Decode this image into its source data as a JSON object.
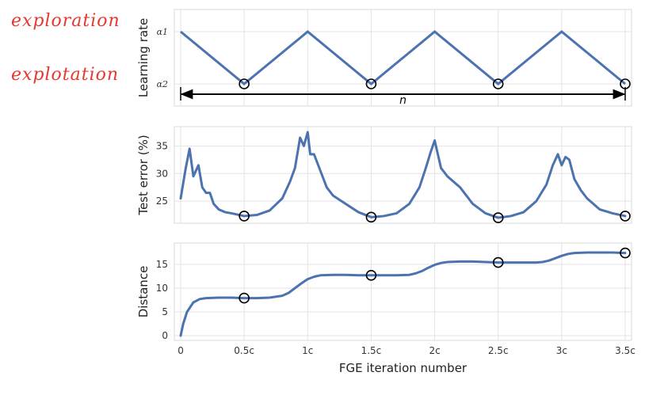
{
  "annotations": {
    "exploration": "exploration",
    "explotation": "explotation"
  },
  "chart_data": [
    {
      "type": "line",
      "ylabel": "Learning rate",
      "y_ticks": [
        "α1",
        "α2"
      ],
      "x": [
        0,
        0.5,
        1,
        1.5,
        2,
        2.5,
        3,
        3.5
      ],
      "values": [
        "α1",
        "α2",
        "α1",
        "α2",
        "α1",
        "α2",
        "α1",
        "α2"
      ],
      "marked_points_x": [
        0.5,
        1.5,
        2.5,
        3.5
      ],
      "span_arrow": {
        "from": 0,
        "to": 3.5,
        "label": "n"
      },
      "color": "#4c72b0"
    },
    {
      "type": "line",
      "ylabel": "Test error (%)",
      "ylim": [
        21,
        38.5
      ],
      "y_ticks": [
        25,
        30,
        35
      ],
      "x": [
        0,
        0.04,
        0.07,
        0.1,
        0.14,
        0.17,
        0.2,
        0.23,
        0.26,
        0.3,
        0.35,
        0.4,
        0.5,
        0.6,
        0.7,
        0.8,
        0.86,
        0.9,
        0.94,
        0.97,
        1.0,
        1.02,
        1.05,
        1.1,
        1.15,
        1.2,
        1.3,
        1.4,
        1.5,
        1.6,
        1.7,
        1.8,
        1.88,
        1.93,
        1.97,
        2.0,
        2.05,
        2.1,
        2.2,
        2.3,
        2.4,
        2.5,
        2.6,
        2.7,
        2.8,
        2.88,
        2.93,
        2.97,
        3.0,
        3.03,
        3.06,
        3.1,
        3.15,
        3.2,
        3.3,
        3.4,
        3.5
      ],
      "values": [
        25.5,
        31,
        34.5,
        29.5,
        31.5,
        27.5,
        26.5,
        26.5,
        24.5,
        23.5,
        23,
        22.8,
        22.3,
        22.5,
        23.3,
        25.5,
        28.5,
        31,
        36.5,
        35,
        37.5,
        33.5,
        33.5,
        30.5,
        27.5,
        26,
        24.5,
        23,
        22.1,
        22.3,
        22.8,
        24.5,
        27.5,
        31,
        34,
        36,
        31,
        29.5,
        27.5,
        24.5,
        22.8,
        22,
        22.3,
        23,
        25,
        28,
        31.5,
        33.5,
        31.5,
        33,
        32.5,
        29,
        27,
        25.5,
        23.5,
        22.8,
        22.3
      ],
      "marked_points_x": [
        0.5,
        1.5,
        2.5,
        3.5
      ],
      "color": "#4c72b0"
    },
    {
      "type": "line",
      "ylabel": "Distance",
      "xlabel": "FGE iteration number",
      "ylim": [
        -1,
        19.5
      ],
      "y_ticks": [
        0,
        5,
        10,
        15
      ],
      "x_tick_values": [
        0,
        0.5,
        1,
        1.5,
        2,
        2.5,
        3,
        3.5
      ],
      "x_tick_labels": [
        "0",
        "0.5c",
        "1c",
        "1.5c",
        "2c",
        "2.5c",
        "3c",
        "3.5c"
      ],
      "x": [
        0,
        0.02,
        0.05,
        0.1,
        0.15,
        0.2,
        0.3,
        0.4,
        0.5,
        0.6,
        0.7,
        0.8,
        0.85,
        0.9,
        0.95,
        1.0,
        1.05,
        1.1,
        1.2,
        1.3,
        1.4,
        1.5,
        1.6,
        1.7,
        1.8,
        1.85,
        1.9,
        1.95,
        2.0,
        2.05,
        2.1,
        2.2,
        2.3,
        2.4,
        2.5,
        2.6,
        2.7,
        2.8,
        2.85,
        2.9,
        2.95,
        3.0,
        3.05,
        3.1,
        3.2,
        3.3,
        3.4,
        3.5
      ],
      "values": [
        0,
        2.5,
        5,
        7,
        7.7,
        7.9,
        8,
        8,
        7.9,
        7.9,
        8,
        8.4,
        9,
        10,
        11,
        11.9,
        12.4,
        12.7,
        12.8,
        12.8,
        12.7,
        12.7,
        12.7,
        12.7,
        12.8,
        13.1,
        13.6,
        14.3,
        14.9,
        15.3,
        15.5,
        15.6,
        15.6,
        15.5,
        15.4,
        15.4,
        15.4,
        15.4,
        15.5,
        15.8,
        16.3,
        16.8,
        17.2,
        17.4,
        17.5,
        17.5,
        17.5,
        17.4
      ],
      "marked_points_x": [
        0.5,
        1.5,
        2.5,
        3.5
      ],
      "color": "#4c72b0"
    }
  ]
}
